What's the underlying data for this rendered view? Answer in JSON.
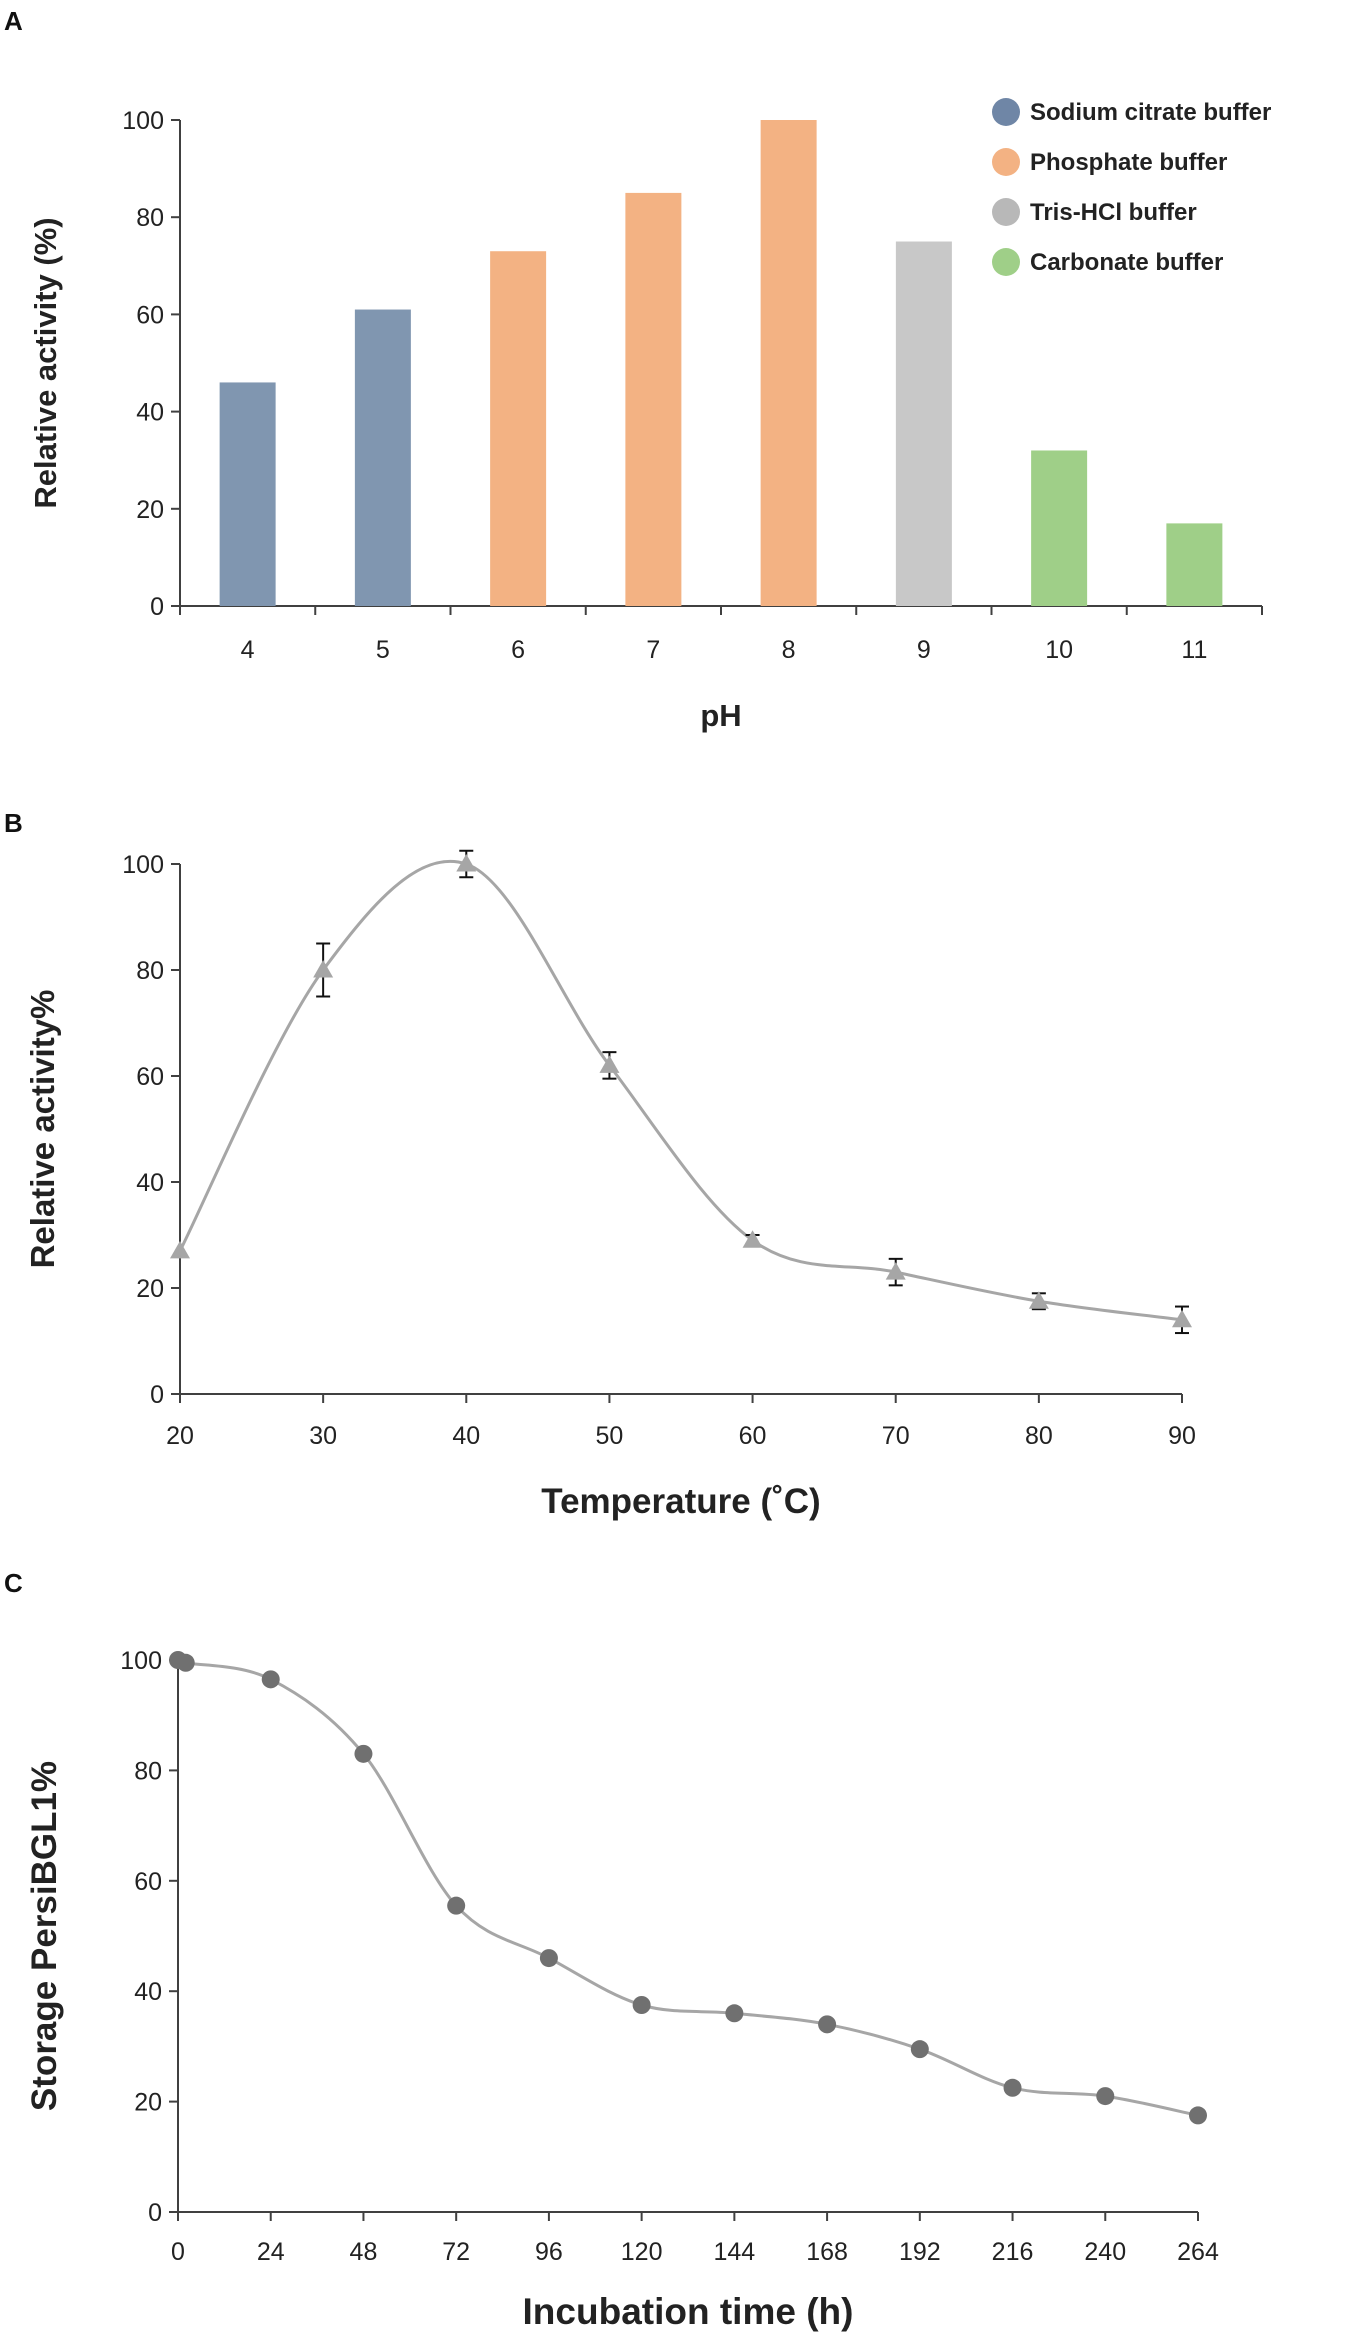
{
  "chart_data": [
    {
      "panel": "A",
      "type": "bar",
      "categories": [
        "4",
        "5",
        "6",
        "7",
        "8",
        "9",
        "10",
        "11"
      ],
      "values": [
        46,
        61,
        73,
        85,
        100,
        75,
        32,
        17
      ],
      "bar_colors": [
        "#8096b0",
        "#8096b0",
        "#f3b283",
        "#f3b283",
        "#f3b283",
        "#c8c8c8",
        "#9fcf88",
        "#9fcf88"
      ],
      "xlabel": "pH",
      "ylabel": "Relative activity (%)",
      "ylim": [
        0,
        100
      ],
      "yticks": [
        0,
        20,
        40,
        60,
        80,
        100
      ],
      "legend": [
        {
          "label": "Sodium citrate buffer",
          "color": "#6f86a6"
        },
        {
          "label": "Phosphate buffer",
          "color": "#f3b283"
        },
        {
          "label": "Tris-HCl buffer",
          "color": "#b8b8b8"
        },
        {
          "label": "Carbonate buffer",
          "color": "#9fcf88"
        }
      ],
      "legend_position": "top-right"
    },
    {
      "panel": "B",
      "type": "line",
      "x": [
        20,
        30,
        40,
        50,
        60,
        70,
        80,
        90
      ],
      "y": [
        27,
        80,
        100,
        62,
        29,
        23,
        17.5,
        14
      ],
      "error": [
        0,
        5,
        2.5,
        2.5,
        1,
        2.5,
        1.5,
        2.5
      ],
      "marker": "triangle",
      "line_color": "#a6a6a6",
      "xlabel": "Temperature (˚C)",
      "ylabel": "Relative activity%",
      "xlim": [
        20,
        90
      ],
      "xticks": [
        20,
        30,
        40,
        50,
        60,
        70,
        80,
        90
      ],
      "ylim": [
        0,
        100
      ],
      "yticks": [
        0,
        20,
        40,
        60,
        80,
        100
      ]
    },
    {
      "panel": "C",
      "type": "line",
      "x": [
        0,
        2,
        24,
        48,
        72,
        96,
        120,
        144,
        168,
        192,
        216,
        240,
        264
      ],
      "y": [
        100,
        99.5,
        96.5,
        83,
        55.5,
        46,
        37.5,
        36,
        34,
        29.5,
        22.5,
        21,
        17.5
      ],
      "marker": "circle",
      "line_color": "#a6a6a6",
      "marker_color": "#707070",
      "xlabel": "Incubation time (h)",
      "ylabel": "Storage PersiBGL1%",
      "xlim": [
        0,
        264
      ],
      "xticks": [
        0,
        24,
        48,
        72,
        96,
        120,
        144,
        168,
        192,
        216,
        240,
        264
      ],
      "ylim": [
        0,
        100
      ],
      "yticks": [
        0,
        20,
        40,
        60,
        80,
        100
      ]
    }
  ]
}
